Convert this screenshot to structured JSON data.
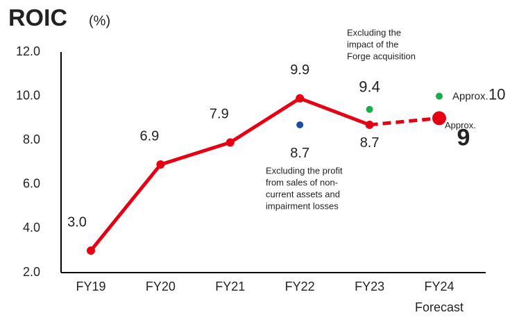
{
  "chart_data": {
    "type": "line",
    "title": "ROIC",
    "unit": "(%)",
    "categories": [
      "FY19",
      "FY20",
      "FY21",
      "FY22",
      "FY23",
      "FY24"
    ],
    "forecast_label": "Forecast",
    "ylim": [
      2,
      12
    ],
    "yticks": [
      {
        "value": 2,
        "label": "2.0"
      },
      {
        "value": 4,
        "label": "4.0"
      },
      {
        "value": 6,
        "label": "6.0"
      },
      {
        "value": 8,
        "label": "8.0"
      },
      {
        "value": 10,
        "label": "10.0"
      },
      {
        "value": 12,
        "label": "12.0"
      }
    ],
    "series": [
      {
        "color": "#e60012",
        "values": [
          3.0,
          6.9,
          7.9,
          9.9,
          8.7,
          9
        ],
        "value_labels": [
          "3.0",
          "6.9",
          "7.9",
          "9.9",
          "8.7",
          "9"
        ],
        "approx_label": "Approx."
      },
      {
        "color": "#1f4e9c",
        "values": [
          null,
          null,
          null,
          8.7,
          null,
          null
        ],
        "value_labels": [
          null,
          null,
          null,
          "8.7",
          null,
          null
        ],
        "annotation": [
          "Excluding the profit",
          "from sales of non-",
          "current assets and",
          "impairment losses"
        ]
      },
      {
        "color": "#1aab4b",
        "values": [
          null,
          null,
          null,
          null,
          9.4,
          10
        ],
        "value_labels": [
          null,
          null,
          null,
          null,
          "9.4",
          "10"
        ],
        "approx_label": "Approx.",
        "annotation": [
          "Excluding the",
          "impact of the",
          "Forge acquisition"
        ]
      }
    ]
  }
}
